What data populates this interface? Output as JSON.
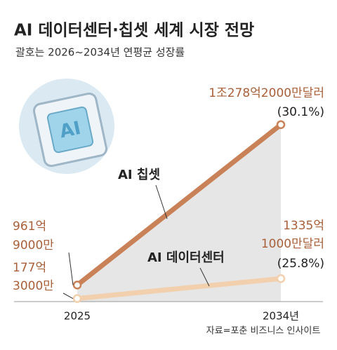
{
  "chart_data": {
    "type": "line",
    "title": "AI 데이터센터·칩셋 세계 시장 전망",
    "subtitle": "괄호는 2026~2034년 연평균 성장률",
    "source": "자료=포춘 비즈니스 인사이트",
    "categories": [
      "2025",
      "2034년"
    ],
    "series": [
      {
        "name": "AI 칩셋",
        "color": "#c98157",
        "values": [
          961.9,
          10278.2
        ],
        "value_labels": [
          [
            "961억",
            "9000만"
          ],
          [
            "1조278억2000만달러"
          ]
        ],
        "growth_label": "(30.1%)"
      },
      {
        "name": "AI 데이터센터",
        "color": "#f2cfad",
        "values": [
          177.3,
          1335.1
        ],
        "value_labels": [
          [
            "177억",
            "3000만"
          ],
          [
            "1335억",
            "1000만달러"
          ]
        ],
        "growth_label": "(25.8%)"
      }
    ],
    "ylim": [
      0,
      11000
    ]
  }
}
